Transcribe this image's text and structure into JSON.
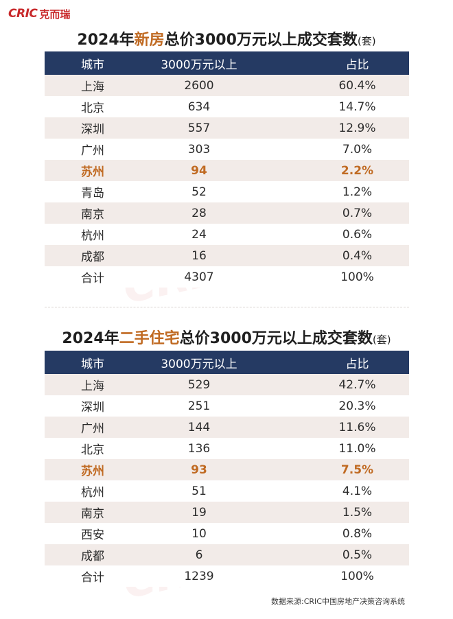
{
  "logo": {
    "mark": "CRIC",
    "name": "克而瑞"
  },
  "section1": {
    "title_prefix": "2024年",
    "title_highlight": "新房",
    "title_suffix": "总价3000万元以上成交套数",
    "title_unit": "(套)",
    "headers": [
      "城市",
      "3000万元以上",
      "占比"
    ],
    "rows": [
      {
        "city": "上海",
        "count": "2600",
        "share": "60.4%"
      },
      {
        "city": "北京",
        "count": "634",
        "share": "14.7%"
      },
      {
        "city": "深圳",
        "count": "557",
        "share": "12.9%"
      },
      {
        "city": "广州",
        "count": "303",
        "share": "7.0%"
      },
      {
        "city": "苏州",
        "count": "94",
        "share": "2.2%"
      },
      {
        "city": "青岛",
        "count": "52",
        "share": "1.2%"
      },
      {
        "city": "南京",
        "count": "28",
        "share": "0.7%"
      },
      {
        "city": "杭州",
        "count": "24",
        "share": "0.6%"
      },
      {
        "city": "成都",
        "count": "16",
        "share": "0.4%"
      },
      {
        "city": "合计",
        "count": "4307",
        "share": "100%"
      }
    ]
  },
  "section2": {
    "title_prefix": "2024年",
    "title_highlight": "二手住宅",
    "title_suffix": "总价3000万元以上成交套数",
    "title_unit": "(套)",
    "headers": [
      "城市",
      "3000万元以上",
      "占比"
    ],
    "rows": [
      {
        "city": "上海",
        "count": "529",
        "share": "42.7%"
      },
      {
        "city": "深圳",
        "count": "251",
        "share": "20.3%"
      },
      {
        "city": "广州",
        "count": "144",
        "share": "11.6%"
      },
      {
        "city": "北京",
        "count": "136",
        "share": "11.0%"
      },
      {
        "city": "苏州",
        "count": "93",
        "share": "7.5%"
      },
      {
        "city": "杭州",
        "count": "51",
        "share": "4.1%"
      },
      {
        "city": "南京",
        "count": "19",
        "share": "1.5%"
      },
      {
        "city": "西安",
        "count": "10",
        "share": "0.8%"
      },
      {
        "city": "成都",
        "count": "6",
        "share": "0.5%"
      },
      {
        "city": "合计",
        "count": "1239",
        "share": "100%"
      }
    ]
  },
  "highlight_city": "苏州",
  "source": "数据来源:CRIC中国房地产决策咨询系统",
  "colors": {
    "header_bg": "#253a63",
    "highlight": "#c06a22",
    "stripe": "#f2ebe8",
    "brand": "#c8282a"
  }
}
